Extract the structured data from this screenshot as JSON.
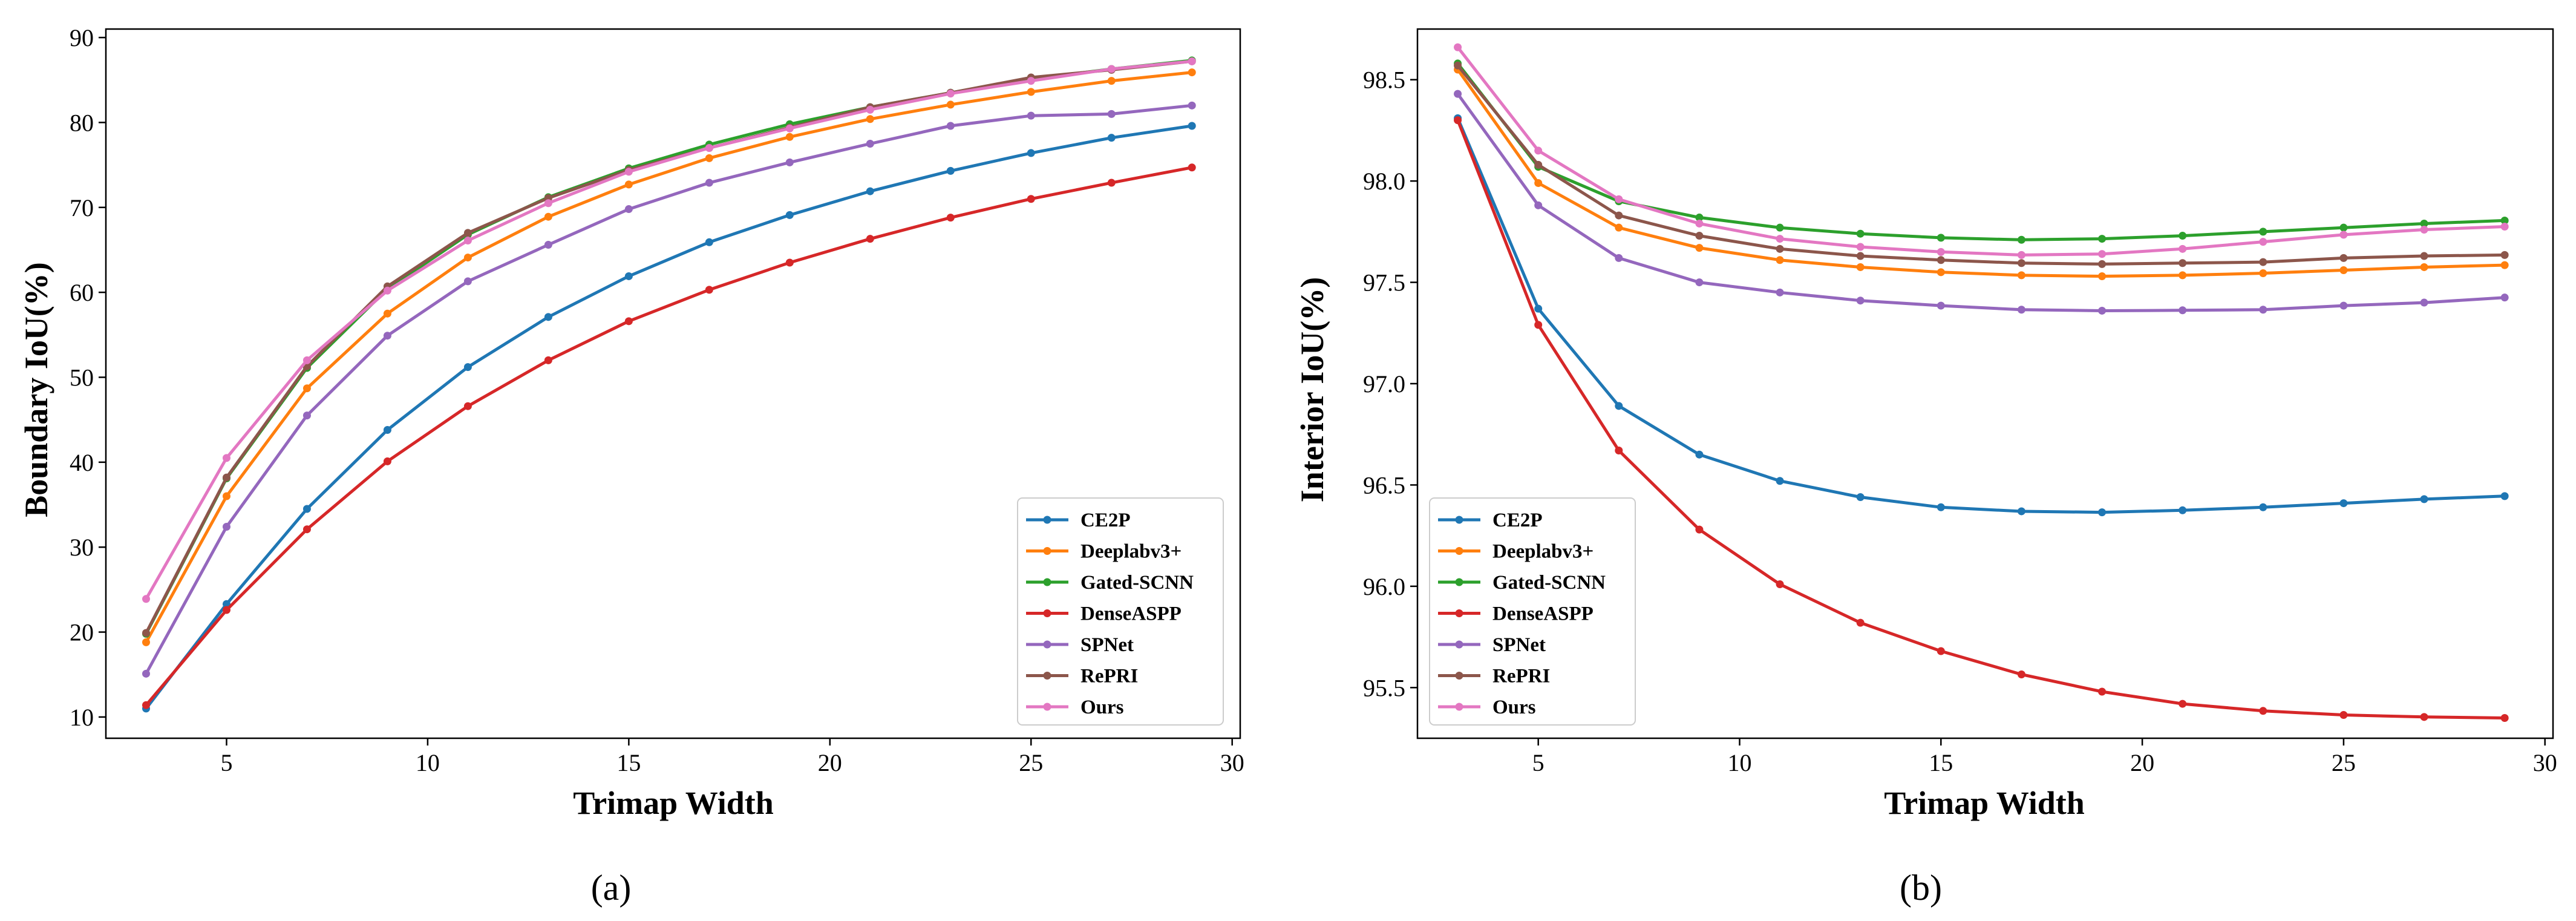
{
  "chart_data": [
    {
      "type": "line",
      "caption": "(a)",
      "xlabel": "Trimap Width",
      "ylabel": "Boundary IoU(%)",
      "xlim": [
        2,
        30.2
      ],
      "ylim": [
        7.5,
        91
      ],
      "xticks": [
        5,
        10,
        15,
        20,
        25,
        30
      ],
      "yticks": [
        10,
        20,
        30,
        40,
        50,
        60,
        70,
        80,
        90
      ],
      "x": [
        3,
        5,
        7,
        9,
        11,
        13,
        15,
        17,
        19,
        21,
        23,
        25,
        27,
        29
      ],
      "legend_position": "lower-right",
      "series": [
        {
          "name": "CE2P",
          "color": "#1f77b4",
          "values": [
            11.0,
            23.3,
            34.5,
            43.8,
            51.2,
            57.1,
            61.9,
            65.9,
            69.1,
            71.9,
            74.3,
            76.4,
            78.2,
            79.6
          ]
        },
        {
          "name": "Deeplabv3+",
          "color": "#ff7f0e",
          "values": [
            18.8,
            36.0,
            48.7,
            57.5,
            64.1,
            68.9,
            72.7,
            75.8,
            78.3,
            80.4,
            82.1,
            83.6,
            84.9,
            85.9
          ]
        },
        {
          "name": "Gated-SCNN",
          "color": "#2ca02c",
          "values": [
            19.8,
            38.1,
            51.1,
            60.4,
            66.8,
            71.2,
            74.6,
            77.4,
            79.8,
            81.8,
            83.5,
            85.1,
            86.3,
            87.3
          ]
        },
        {
          "name": "DenseASPP",
          "color": "#d62728",
          "values": [
            11.4,
            22.6,
            32.1,
            40.1,
            46.6,
            52.0,
            56.6,
            60.3,
            63.5,
            66.3,
            68.8,
            71.0,
            72.9,
            74.7
          ]
        },
        {
          "name": "SPNet",
          "color": "#9467bd",
          "values": [
            15.1,
            32.4,
            45.5,
            54.9,
            61.3,
            65.6,
            69.8,
            72.9,
            75.3,
            77.5,
            79.6,
            80.8,
            81.0,
            82.0
          ]
        },
        {
          "name": "RePRI",
          "color": "#8c564b",
          "values": [
            19.9,
            38.2,
            51.3,
            60.7,
            67.0,
            71.1,
            74.4,
            77.0,
            79.4,
            81.8,
            83.5,
            85.3,
            86.2,
            87.2
          ]
        },
        {
          "name": "Ours",
          "color": "#e377c2",
          "values": [
            23.9,
            40.5,
            52.0,
            60.2,
            66.1,
            70.5,
            74.2,
            77.0,
            79.3,
            81.5,
            83.4,
            84.9,
            86.3,
            87.2
          ]
        }
      ]
    },
    {
      "type": "line",
      "caption": "(b)",
      "xlabel": "Trimap Width",
      "ylabel": "Interior IoU(%)",
      "xlim": [
        2,
        30.2
      ],
      "ylim": [
        95.25,
        98.75
      ],
      "xticks": [
        5,
        10,
        15,
        20,
        25,
        30
      ],
      "yticks": [
        95.5,
        96.0,
        96.5,
        97.0,
        97.5,
        98.0,
        98.5
      ],
      "ytick_labels": [
        "95.5",
        "96.0",
        "96.5",
        "97.0",
        "97.5",
        "98.0",
        "98.5"
      ],
      "x": [
        3,
        5,
        7,
        9,
        11,
        13,
        15,
        17,
        19,
        21,
        23,
        25,
        27,
        29
      ],
      "legend_position": "lower-left",
      "series": [
        {
          "name": "CE2P",
          "color": "#1f77b4",
          "values": [
            98.31,
            97.37,
            96.89,
            96.65,
            96.52,
            96.44,
            96.39,
            96.37,
            96.365,
            96.375,
            96.39,
            96.41,
            96.43,
            96.445
          ]
        },
        {
          "name": "Deeplabv3+",
          "color": "#ff7f0e",
          "values": [
            98.55,
            97.99,
            97.77,
            97.67,
            97.61,
            97.575,
            97.55,
            97.535,
            97.53,
            97.535,
            97.545,
            97.56,
            97.575,
            97.585
          ]
        },
        {
          "name": "Gated-SCNN",
          "color": "#2ca02c",
          "values": [
            98.58,
            98.07,
            97.9,
            97.82,
            97.77,
            97.74,
            97.72,
            97.71,
            97.715,
            97.73,
            97.75,
            97.77,
            97.79,
            97.805
          ]
        },
        {
          "name": "DenseASPP",
          "color": "#d62728",
          "values": [
            98.3,
            97.29,
            96.67,
            96.28,
            96.01,
            95.82,
            95.68,
            95.565,
            95.48,
            95.42,
            95.385,
            95.365,
            95.355,
            95.35
          ]
        },
        {
          "name": "SPNet",
          "color": "#9467bd",
          "values": [
            98.43,
            97.88,
            97.62,
            97.5,
            97.45,
            97.41,
            97.385,
            97.365,
            97.36,
            97.362,
            97.365,
            97.385,
            97.4,
            97.425
          ]
        },
        {
          "name": "RePRI",
          "color": "#8c564b",
          "values": [
            98.57,
            98.08,
            97.83,
            97.73,
            97.665,
            97.63,
            97.61,
            97.595,
            97.59,
            97.595,
            97.6,
            97.62,
            97.63,
            97.635
          ]
        },
        {
          "name": "Ours",
          "color": "#e377c2",
          "values": [
            98.66,
            98.15,
            97.91,
            97.79,
            97.715,
            97.675,
            97.65,
            97.635,
            97.64,
            97.665,
            97.7,
            97.735,
            97.76,
            97.775
          ]
        }
      ]
    }
  ]
}
